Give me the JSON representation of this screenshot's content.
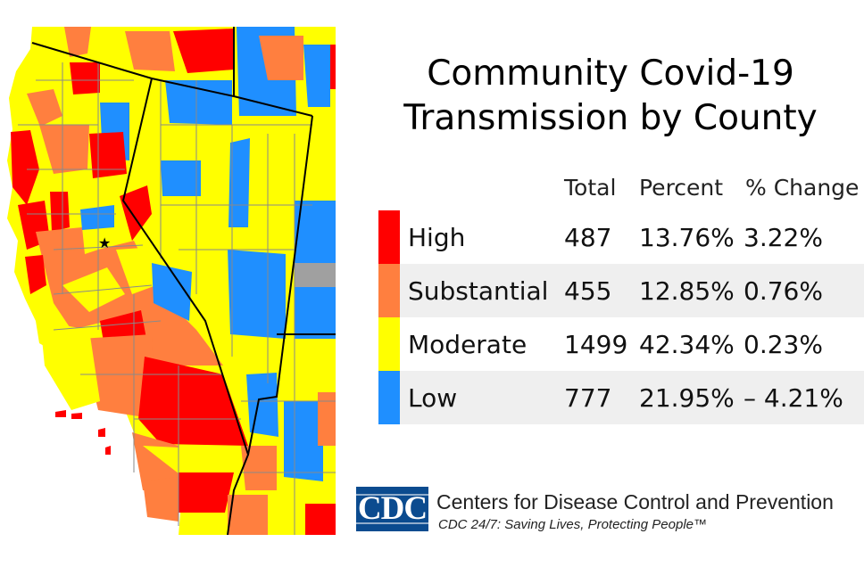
{
  "title": {
    "line1": "Community Covid-19",
    "line2": "Transmission by County"
  },
  "legend": {
    "headers": {
      "total": "Total",
      "percent": "Percent",
      "change": "% Change"
    },
    "rows": [
      {
        "label": "High",
        "total": "487",
        "percent": "13.76%",
        "change": "3.22%",
        "color": "#ff0000"
      },
      {
        "label": "Substantial",
        "total": "455",
        "percent": "12.85%",
        "change": "0.76%",
        "color": "#ff7f3f"
      },
      {
        "label": "Moderate",
        "total": "1499",
        "percent": "42.34%",
        "change": "0.23%",
        "color": "#ffff00"
      },
      {
        "label": "Low",
        "total": "777",
        "percent": "21.95%",
        "change": "– 4.21%",
        "color": "#1f8fff"
      }
    ]
  },
  "map": {
    "no_data_color": "#a0a0a0",
    "boundary_color": "#7f7f7f",
    "state_border_color": "#000000",
    "capital_marker": "★"
  },
  "footer": {
    "logo_text": "CDC",
    "org_name": "Centers for Disease Control and Prevention",
    "tagline": "CDC 24/7: Saving Lives, Protecting People™"
  }
}
